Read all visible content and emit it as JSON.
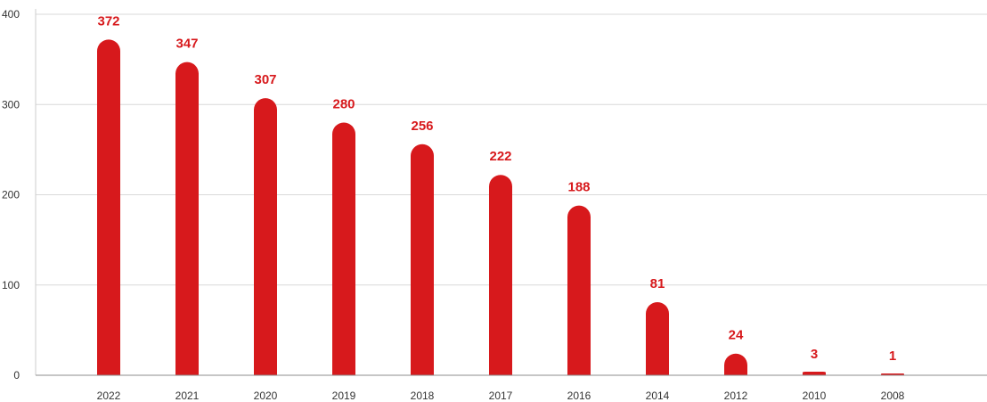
{
  "chart_data": {
    "type": "bar",
    "categories": [
      "2022",
      "2021",
      "2020",
      "2019",
      "2018",
      "2017",
      "2016",
      "2014",
      "2012",
      "2010",
      "2008"
    ],
    "values": [
      372,
      347,
      307,
      280,
      256,
      222,
      188,
      81,
      24,
      3,
      1
    ],
    "value_labels": [
      "372",
      "347",
      "307",
      "280",
      "256",
      "222",
      "188",
      "81",
      "24",
      "3",
      "1"
    ],
    "y_ticks": [
      "0",
      "100",
      "200",
      "300",
      "400"
    ],
    "ylim": [
      0,
      400
    ],
    "grid": true,
    "legend": "none",
    "bar_color": "#d7191c",
    "label_color": "#d7191c",
    "title": "",
    "xlabel": "",
    "ylabel": ""
  }
}
